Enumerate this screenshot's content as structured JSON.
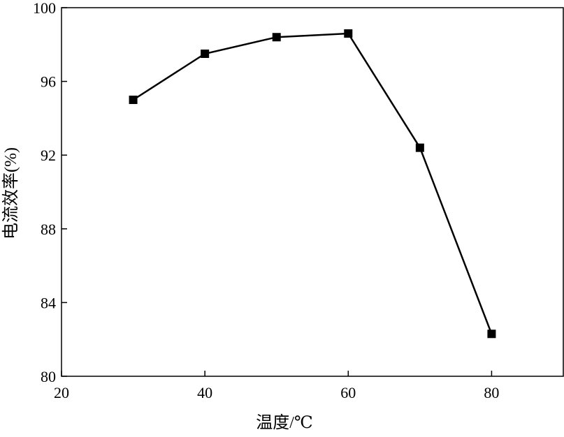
{
  "chart_data": {
    "type": "line",
    "xlabel": "温度/℃",
    "ylabel": "电流效率(%)",
    "xlim": [
      20,
      90
    ],
    "ylim": [
      80,
      100
    ],
    "xticks": [
      20,
      40,
      60,
      80
    ],
    "yticks": [
      80,
      84,
      88,
      92,
      96,
      100
    ],
    "x": [
      30,
      40,
      50,
      60,
      70,
      80
    ],
    "series": [
      {
        "values": [
          95.0,
          97.5,
          98.4,
          98.6,
          92.4,
          82.3
        ],
        "marker": "square",
        "color": "#000000"
      }
    ],
    "grid": false,
    "legend": "none"
  }
}
